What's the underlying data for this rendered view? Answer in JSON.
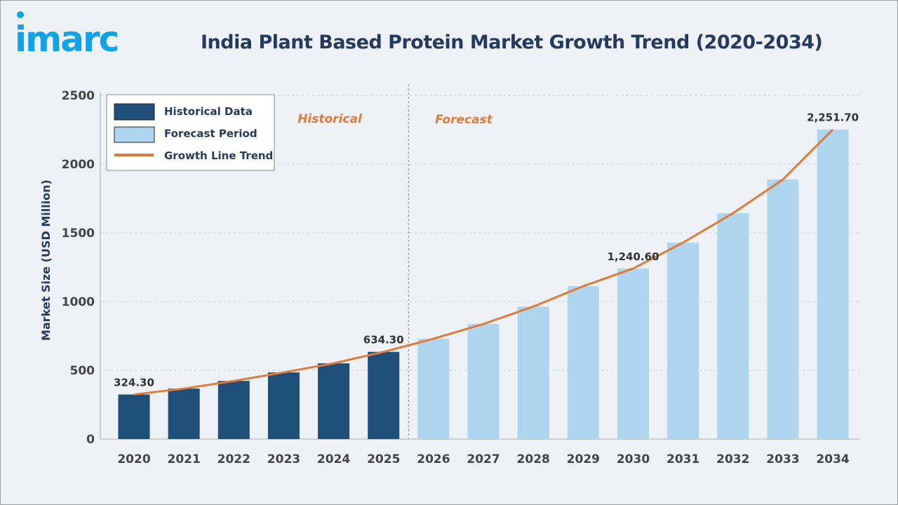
{
  "header": {
    "logo_text": "imarc",
    "title": "India Plant Based Protein Market Growth Trend (2020-2034)"
  },
  "colors": {
    "historical": "#1f4e79",
    "forecast": "#aed4ee",
    "line": "#e07b39",
    "logo": "#10a3e8"
  },
  "chart_data": {
    "type": "bar",
    "title": "India Plant Based Protein Market Growth Trend (2020-2034)",
    "xlabel": "",
    "ylabel": "Market Size (USD Million)",
    "ylim": [
      0,
      2500
    ],
    "yticks": [
      0,
      500,
      1000,
      1500,
      2000,
      2500
    ],
    "grid": true,
    "legend": "top-left",
    "categories": [
      "2020",
      "2021",
      "2022",
      "2023",
      "2024",
      "2025",
      "2026",
      "2027",
      "2028",
      "2029",
      "2030",
      "2031",
      "2032",
      "2033",
      "2034"
    ],
    "values": [
      324.3,
      367,
      423,
      485,
      551,
      634.3,
      730,
      837,
      964,
      1112,
      1240.6,
      1429,
      1643,
      1888,
      2251.7
    ],
    "historical_count": 6,
    "series": [
      {
        "name": "Historical Data"
      },
      {
        "name": "Forecast Period"
      },
      {
        "name": "Growth Line Trend"
      }
    ],
    "data_labels": [
      {
        "index": 0,
        "text": "324.30"
      },
      {
        "index": 5,
        "text": "634.30"
      },
      {
        "index": 10,
        "text": "1,240.60"
      },
      {
        "index": 14,
        "text": "2,251.70"
      }
    ],
    "annotations": {
      "historical": "Historical",
      "forecast": "Forecast"
    }
  }
}
